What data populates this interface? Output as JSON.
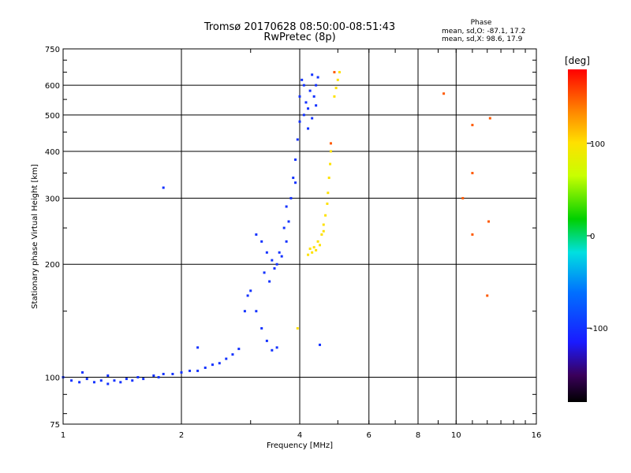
{
  "header": {
    "title_line1": "Tromsø 20170628 08:50:00-08:51:43",
    "title_line2": "RwPretec (8p)",
    "phase_heading": "Phase",
    "phase_o": "mean, sd,O: -87.1, 17.2",
    "phase_x": "mean, sd,X:  98.6, 17.9"
  },
  "colorbar": {
    "unit": "[deg]",
    "ticks": [
      100,
      0,
      -100
    ],
    "range": [
      -180,
      180
    ]
  },
  "chart_data": {
    "type": "scatter",
    "title": "Tromsø 20170628 08:50:00-08:51:43",
    "subtitle": "RwPretec (8p)",
    "xlabel": "Frequency [MHz]",
    "ylabel": "Stationary phase Virtual Height [km]",
    "xscale": "log",
    "yscale": "log",
    "xlim": [
      1,
      16
    ],
    "ylim": [
      75,
      750
    ],
    "xticks": [
      1,
      2,
      4,
      6,
      8,
      10,
      16
    ],
    "yticks": [
      75,
      100,
      200,
      300,
      400,
      500,
      600,
      750
    ],
    "grid": true,
    "color_by": "phase_deg",
    "series": [
      {
        "name": "O-mode trace (blue, ~-100 deg)",
        "phase_deg": -100,
        "points": [
          [
            1.0,
            100
          ],
          [
            1.05,
            98
          ],
          [
            1.1,
            97
          ],
          [
            1.15,
            99
          ],
          [
            1.2,
            97
          ],
          [
            1.25,
            98
          ],
          [
            1.3,
            96
          ],
          [
            1.35,
            98
          ],
          [
            1.4,
            97
          ],
          [
            1.45,
            99
          ],
          [
            1.5,
            98
          ],
          [
            1.55,
            100
          ],
          [
            1.6,
            99
          ],
          [
            1.7,
            101
          ],
          [
            1.8,
            102
          ],
          [
            1.9,
            102
          ],
          [
            2.0,
            103
          ],
          [
            2.1,
            104
          ],
          [
            2.2,
            104
          ],
          [
            2.3,
            106
          ],
          [
            2.4,
            108
          ],
          [
            2.5,
            109
          ],
          [
            2.6,
            112
          ],
          [
            2.7,
            115
          ],
          [
            2.8,
            119
          ],
          [
            2.9,
            150
          ],
          [
            2.95,
            165
          ],
          [
            3.0,
            170
          ],
          [
            3.1,
            150
          ],
          [
            3.2,
            135
          ],
          [
            3.3,
            125
          ],
          [
            3.4,
            118
          ],
          [
            3.5,
            120
          ],
          [
            3.1,
            240
          ],
          [
            3.2,
            230
          ],
          [
            3.3,
            215
          ],
          [
            3.4,
            205
          ],
          [
            3.5,
            200
          ],
          [
            3.6,
            210
          ],
          [
            3.7,
            230
          ],
          [
            3.75,
            260
          ],
          [
            3.8,
            300
          ],
          [
            3.85,
            340
          ],
          [
            3.9,
            380
          ],
          [
            3.95,
            430
          ],
          [
            4.0,
            480
          ],
          [
            4.0,
            560
          ],
          [
            4.05,
            620
          ],
          [
            4.1,
            600
          ],
          [
            4.15,
            540
          ],
          [
            4.2,
            520
          ],
          [
            4.25,
            580
          ],
          [
            4.3,
            640
          ],
          [
            4.35,
            560
          ],
          [
            4.4,
            600
          ],
          [
            4.45,
            630
          ],
          [
            3.25,
            190
          ],
          [
            3.35,
            180
          ],
          [
            3.45,
            195
          ],
          [
            3.55,
            215
          ],
          [
            3.65,
            250
          ],
          [
            3.7,
            285
          ],
          [
            3.9,
            330
          ],
          [
            4.1,
            500
          ],
          [
            4.2,
            460
          ],
          [
            4.3,
            490
          ],
          [
            4.4,
            530
          ],
          [
            1.12,
            103
          ],
          [
            1.3,
            101
          ],
          [
            1.75,
            100
          ],
          [
            1.8,
            320
          ],
          [
            2.2,
            120
          ],
          [
            4.5,
            122
          ]
        ]
      },
      {
        "name": "X-mode trace (yellow/orange, ~+100 deg)",
        "phase_deg": 100,
        "points": [
          [
            4.2,
            212
          ],
          [
            4.3,
            215
          ],
          [
            4.4,
            218
          ],
          [
            4.5,
            225
          ],
          [
            4.55,
            240
          ],
          [
            4.6,
            255
          ],
          [
            4.65,
            270
          ],
          [
            4.7,
            290
          ],
          [
            4.72,
            310
          ],
          [
            4.75,
            340
          ],
          [
            4.78,
            370
          ],
          [
            4.8,
            400
          ],
          [
            4.9,
            560
          ],
          [
            4.95,
            590
          ],
          [
            5.0,
            620
          ],
          [
            5.05,
            650
          ],
          [
            4.25,
            220
          ],
          [
            4.35,
            222
          ],
          [
            4.45,
            230
          ],
          [
            4.6,
            245
          ],
          [
            3.95,
            135
          ]
        ]
      },
      {
        "name": "scattered (orange/red)",
        "phase_deg": 150,
        "points": [
          [
            9.3,
            570
          ],
          [
            10.4,
            300
          ],
          [
            11.0,
            470
          ],
          [
            11.0,
            350
          ],
          [
            12.2,
            490
          ],
          [
            11.0,
            240
          ],
          [
            12.1,
            260
          ],
          [
            12.0,
            165
          ],
          [
            4.8,
            420
          ],
          [
            4.9,
            650
          ]
        ]
      }
    ]
  }
}
